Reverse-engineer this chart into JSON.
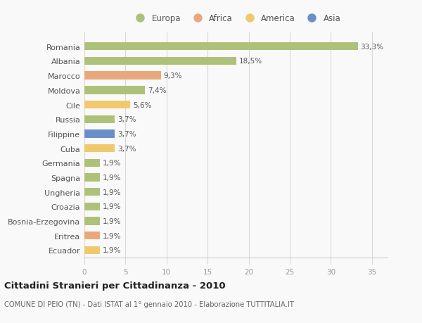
{
  "categories": [
    "Romania",
    "Albania",
    "Marocco",
    "Moldova",
    "Cile",
    "Russia",
    "Filippine",
    "Cuba",
    "Germania",
    "Spagna",
    "Ungheria",
    "Croazia",
    "Bosnia-Erzegovina",
    "Eritrea",
    "Ecuador"
  ],
  "values": [
    33.3,
    18.5,
    9.3,
    7.4,
    5.6,
    3.7,
    3.7,
    3.7,
    1.9,
    1.9,
    1.9,
    1.9,
    1.9,
    1.9,
    1.9
  ],
  "labels": [
    "33,3%",
    "18,5%",
    "9,3%",
    "7,4%",
    "5,6%",
    "3,7%",
    "3,7%",
    "3,7%",
    "1,9%",
    "1,9%",
    "1,9%",
    "1,9%",
    "1,9%",
    "1,9%",
    "1,9%"
  ],
  "colors": [
    "#adc178",
    "#adc178",
    "#e8a87c",
    "#adc178",
    "#f0c96e",
    "#adc178",
    "#6a8fc7",
    "#f0c96e",
    "#adc178",
    "#adc178",
    "#adc178",
    "#adc178",
    "#adc178",
    "#e8a87c",
    "#f0c96e"
  ],
  "legend_labels": [
    "Europa",
    "Africa",
    "America",
    "Asia"
  ],
  "legend_colors": [
    "#adc178",
    "#e8a87c",
    "#f0c96e",
    "#6a8fc7"
  ],
  "title": "Cittadini Stranieri per Cittadinanza - 2010",
  "subtitle": "COMUNE DI PEIO (TN) - Dati ISTAT al 1° gennaio 2010 - Elaborazione TUTTITALIA.IT",
  "xlim": [
    0,
    37
  ],
  "xticks": [
    0,
    5,
    10,
    15,
    20,
    25,
    30,
    35
  ],
  "bg_color": "#f9f9f9",
  "grid_color": "#d8d8d8",
  "bar_height": 0.55
}
